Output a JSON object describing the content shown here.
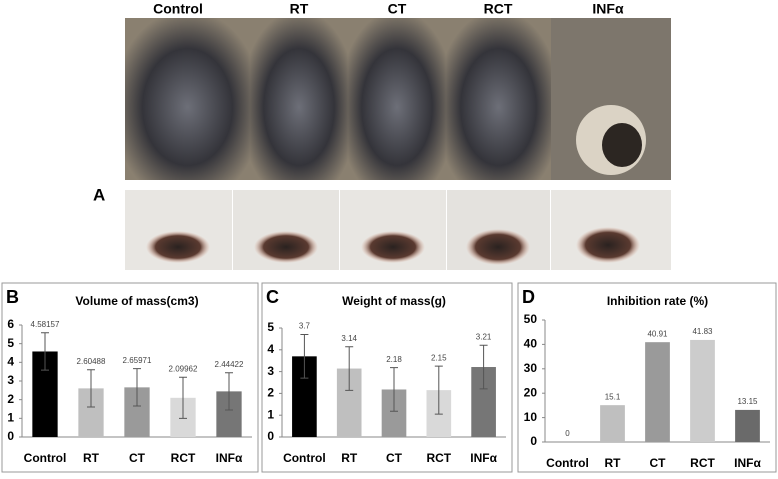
{
  "photos": {
    "labels": [
      "Control",
      "RT",
      "CT",
      "RCT",
      "INFα"
    ],
    "panel": "A"
  },
  "chart_data": [
    {
      "type": "bar",
      "panel": "B",
      "title": "Volume of mass(cm3)",
      "categories": [
        "Control",
        "RT",
        "CT",
        "RCT",
        "INFα"
      ],
      "values": [
        4.58157,
        2.60488,
        2.65971,
        2.09962,
        2.44422
      ],
      "errors": [
        1.0,
        1.0,
        1.0,
        1.1,
        1.0
      ],
      "colors": [
        "#000000",
        "#bfbfbf",
        "#9a9a9a",
        "#d9d9d9",
        "#767676"
      ],
      "ylim": [
        0,
        6
      ],
      "yticks": [
        0,
        1,
        2,
        3,
        4,
        5,
        6
      ]
    },
    {
      "type": "bar",
      "panel": "C",
      "title": "Weight of mass(g)",
      "categories": [
        "Control",
        "RT",
        "CT",
        "RCT",
        "INFα"
      ],
      "values": [
        3.7,
        3.14,
        2.18,
        2.15,
        3.21
      ],
      "errors": [
        1.0,
        1.0,
        1.0,
        1.1,
        1.0
      ],
      "colors": [
        "#000000",
        "#bfbfbf",
        "#9a9a9a",
        "#d9d9d9",
        "#767676"
      ],
      "ylim": [
        0,
        5
      ],
      "yticks": [
        0,
        1,
        2,
        3,
        4,
        5
      ]
    },
    {
      "type": "bar",
      "panel": "D",
      "title": "Inhibition rate (%)",
      "categories": [
        "Control",
        "RT",
        "CT",
        "RCT",
        "INFα"
      ],
      "values": [
        0,
        15.1,
        40.91,
        41.83,
        13.15
      ],
      "colors": [
        "#000000",
        "#bfbfbf",
        "#9a9a9a",
        "#cccccc",
        "#6a6a6a"
      ],
      "ylim": [
        0,
        50
      ],
      "yticks": [
        0,
        10,
        20,
        30,
        40,
        50
      ]
    }
  ]
}
